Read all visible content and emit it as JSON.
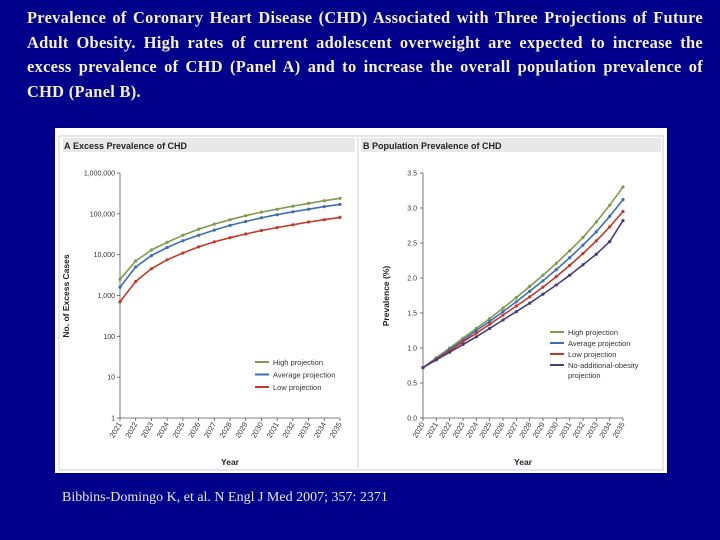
{
  "heading": "Prevalence of Coronary Heart Disease (CHD) Associated with Three Projections of Future Adult Obesity. High rates of current adolescent overweight are expected to increase the excess prevalence of CHD (Panel A) and to increase the overall population prevalence of CHD (Panel B).",
  "citation": "Bibbins-Domingo K, et al. N Engl J Med 2007; 357: 2371",
  "colors": {
    "background": "#00008b",
    "heading": "#f5f0c8",
    "high": "#7f9a4e",
    "average": "#3b6fb0",
    "low": "#c0392b",
    "none": "#4a3a7a"
  },
  "chart_data": [
    {
      "panel": "A",
      "type": "line",
      "title": "Excess Prevalence of CHD",
      "xlabel": "Year",
      "ylabel": "No. of Excess Cases",
      "yscale": "log",
      "ylim": [
        1,
        1000000
      ],
      "yticks": [
        "1",
        "10",
        "100",
        "1,000",
        "10,000",
        "100,000",
        "1,000,000"
      ],
      "x": [
        2021,
        2022,
        2023,
        2024,
        2025,
        2026,
        2027,
        2028,
        2029,
        2030,
        2031,
        2032,
        2033,
        2034,
        2035
      ],
      "legend_position": "bottom-right",
      "series": [
        {
          "name": "High projection",
          "color_key": "high",
          "values": [
            2500,
            7000,
            13000,
            20000,
            30000,
            42000,
            56000,
            72000,
            90000,
            110000,
            130000,
            155000,
            180000,
            210000,
            240000
          ]
        },
        {
          "name": "Average projection",
          "color_key": "average",
          "values": [
            1600,
            5000,
            9500,
            15000,
            22000,
            30000,
            40000,
            52000,
            65000,
            80000,
            95000,
            112000,
            130000,
            150000,
            170000
          ]
        },
        {
          "name": "Low projection",
          "color_key": "low",
          "values": [
            700,
            2200,
            4500,
            7500,
            11000,
            15500,
            20500,
            26000,
            32000,
            39000,
            46000,
            54000,
            63000,
            72000,
            82000
          ]
        }
      ]
    },
    {
      "panel": "B",
      "type": "line",
      "title": "Population Prevalence of CHD",
      "xlabel": "Year",
      "ylabel": "Prevalence (%)",
      "ylim": [
        0,
        3.5
      ],
      "yticks": [
        "0.0",
        "0.5",
        "1.0",
        "1.5",
        "2.0",
        "2.5",
        "3.0",
        "3.5"
      ],
      "x": [
        2020,
        2021,
        2022,
        2023,
        2024,
        2025,
        2026,
        2027,
        2028,
        2029,
        2030,
        2031,
        2032,
        2033,
        2034,
        2035
      ],
      "legend_position": "bottom-right",
      "series": [
        {
          "name": "High projection",
          "color_key": "high",
          "values": [
            0.72,
            0.86,
            1.0,
            1.14,
            1.28,
            1.42,
            1.57,
            1.72,
            1.88,
            2.04,
            2.21,
            2.39,
            2.58,
            2.8,
            3.04,
            3.3
          ]
        },
        {
          "name": "Average projection",
          "color_key": "average",
          "values": [
            0.72,
            0.85,
            0.98,
            1.11,
            1.25,
            1.38,
            1.52,
            1.66,
            1.81,
            1.96,
            2.12,
            2.29,
            2.47,
            2.66,
            2.88,
            3.12
          ]
        },
        {
          "name": "Low projection",
          "color_key": "low",
          "values": [
            0.72,
            0.84,
            0.96,
            1.09,
            1.21,
            1.34,
            1.47,
            1.6,
            1.73,
            1.87,
            2.02,
            2.18,
            2.35,
            2.53,
            2.73,
            2.95
          ]
        },
        {
          "name": "No-additional-obesity projection",
          "legend_lines": [
            "No-additional-obesity",
            "projection"
          ],
          "color_key": "none",
          "values": [
            0.72,
            0.83,
            0.94,
            1.05,
            1.16,
            1.28,
            1.4,
            1.52,
            1.64,
            1.77,
            1.9,
            2.04,
            2.19,
            2.34,
            2.52,
            2.82
          ]
        }
      ]
    }
  ]
}
